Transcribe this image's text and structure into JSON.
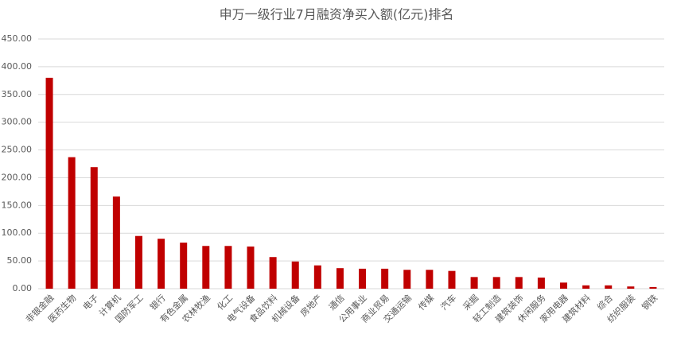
{
  "chart_data": {
    "type": "bar",
    "title": "申万一级行业7月融资净买入额(亿元)排名",
    "categories": [
      "非银金融",
      "医药生物",
      "电子",
      "计算机",
      "国防军工",
      "银行",
      "有色金属",
      "农林牧渔",
      "化工",
      "电气设备",
      "食品饮料",
      "机械设备",
      "房地产",
      "通信",
      "公用事业",
      "商业贸易",
      "交通运输",
      "传媒",
      "汽车",
      "采掘",
      "轻工制造",
      "建筑装饰",
      "休闲服务",
      "家用电器",
      "建筑材料",
      "综合",
      "纺织服装",
      "钢铁"
    ],
    "values": [
      380,
      237,
      219,
      166,
      95,
      90,
      83,
      77,
      77,
      76,
      57,
      49,
      42,
      37,
      36,
      36,
      34,
      34,
      32,
      21,
      21,
      21,
      20,
      11,
      6,
      6,
      4,
      3
    ],
    "color": "#c00000",
    "ylim": [
      0,
      450
    ],
    "yticks": [
      {
        "value": 0,
        "label": "0.00"
      },
      {
        "value": 50,
        "label": "50.00"
      },
      {
        "value": 100,
        "label": "100.00"
      },
      {
        "value": 150,
        "label": "150.00"
      },
      {
        "value": 200,
        "label": "200.00"
      },
      {
        "value": 250,
        "label": "250.00"
      },
      {
        "value": 300,
        "label": "300.00"
      },
      {
        "value": 350,
        "label": "350.00"
      },
      {
        "value": 400,
        "label": "400.00"
      },
      {
        "value": 450,
        "label": "450.00"
      }
    ],
    "grid": true
  }
}
